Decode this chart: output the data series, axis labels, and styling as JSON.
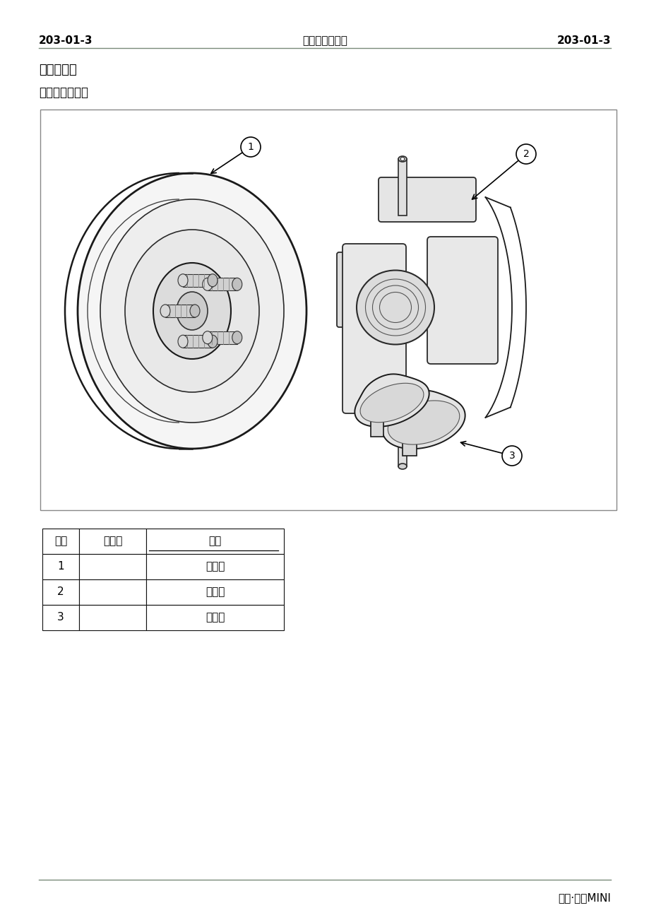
{
  "header_left": "203-01-3",
  "header_center": "前轮盘式制动器",
  "header_right": "203-01-3",
  "section_title": "说明与操作",
  "subsection_title": "前轮盘式制动器",
  "table_headers": [
    "编号",
    "零件号",
    "名称"
  ],
  "table_rows": [
    [
      "1",
      "",
      "制动盘"
    ],
    [
      "2",
      "",
      "制动钓"
    ],
    [
      "3",
      "",
      "制动片"
    ]
  ],
  "footer_text": "长安·奔奔MINI",
  "bg_color": "#ffffff",
  "text_color": "#000000",
  "header_line_color": "#7a8a7a",
  "label1": "1",
  "label2": "2",
  "label3": "3"
}
